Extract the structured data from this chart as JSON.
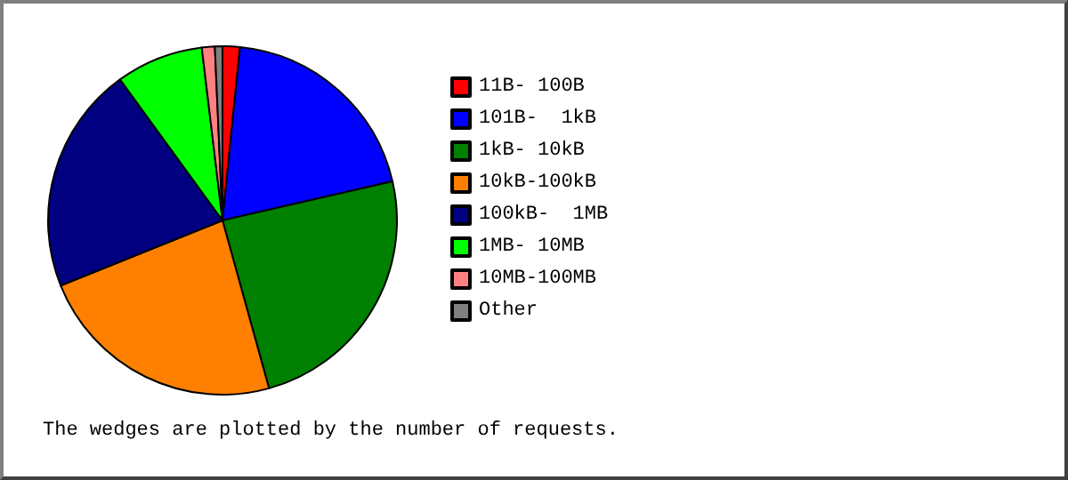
{
  "chart_data": {
    "type": "pie",
    "categories": [
      "11B- 100B",
      "101B-  1kB",
      "1kB- 10kB",
      "10kB-100kB",
      "100kB-  1MB",
      "1MB- 10MB",
      "10MB-100MB",
      "Other"
    ],
    "values": [
      1.6,
      19.8,
      24.3,
      23.2,
      21.1,
      8.1,
      1.2,
      0.7
    ],
    "colors": [
      "#ff0000",
      "#0000ff",
      "#008000",
      "#ff8000",
      "#000080",
      "#00ff00",
      "#ff8080",
      "#808080"
    ],
    "legend": "right",
    "annotations": [
      "The wedges are plotted by the number of requests."
    ]
  }
}
